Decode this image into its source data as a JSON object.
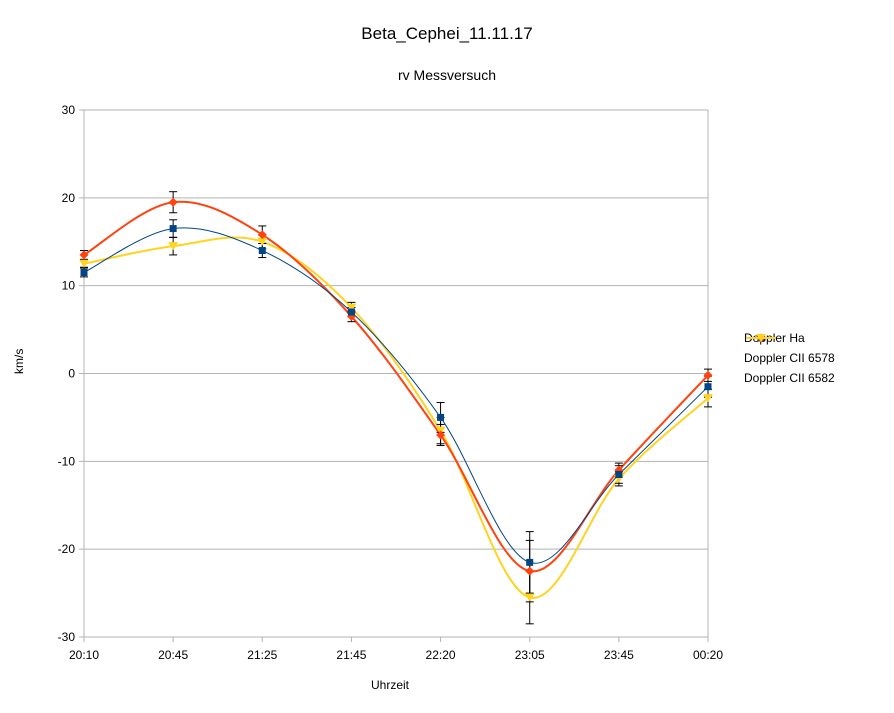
{
  "chart_data": {
    "type": "line",
    "title": "Beta_Cephei_11.11.17",
    "subtitle": "rv Messversuch",
    "xlabel": "Uhrzeit",
    "ylabel": "km/s",
    "categories": [
      "20:10",
      "20:45",
      "21:25",
      "21:45",
      "22:20",
      "23:05",
      "23:45",
      "00:20"
    ],
    "ylim": [
      -30,
      30
    ],
    "yticks": [
      30,
      20,
      10,
      0,
      -10,
      -20,
      -30
    ],
    "grid": "horizontal",
    "legend_position": "right",
    "series": [
      {
        "name": "Doppler Ha",
        "color": "#004586",
        "marker": "square",
        "values": [
          11.5,
          16.5,
          14.0,
          7.0,
          -5.0,
          -21.5,
          -11.5,
          -1.5
        ],
        "error": [
          0.5,
          1.0,
          0.8,
          0.5,
          1.7,
          3.5,
          1.0,
          1.2
        ]
      },
      {
        "name": "Doppler CII 6578",
        "color": "#ff420e",
        "marker": "diamond",
        "values": [
          13.5,
          19.5,
          15.8,
          6.5,
          -7.0,
          -22.5,
          -11.0,
          -0.2
        ],
        "error": [
          0.5,
          1.2,
          1.0,
          0.6,
          1.2,
          3.5,
          0.8,
          0.7
        ]
      },
      {
        "name": "Doppler CII 6582",
        "color": "#ffd320",
        "marker": "triangle-down",
        "values": [
          12.5,
          14.5,
          15.0,
          7.5,
          -6.5,
          -25.5,
          -12.0,
          -2.8
        ],
        "error": [
          0.4,
          1.0,
          0.8,
          0.6,
          1.5,
          3.0,
          0.8,
          1.0
        ]
      }
    ]
  }
}
